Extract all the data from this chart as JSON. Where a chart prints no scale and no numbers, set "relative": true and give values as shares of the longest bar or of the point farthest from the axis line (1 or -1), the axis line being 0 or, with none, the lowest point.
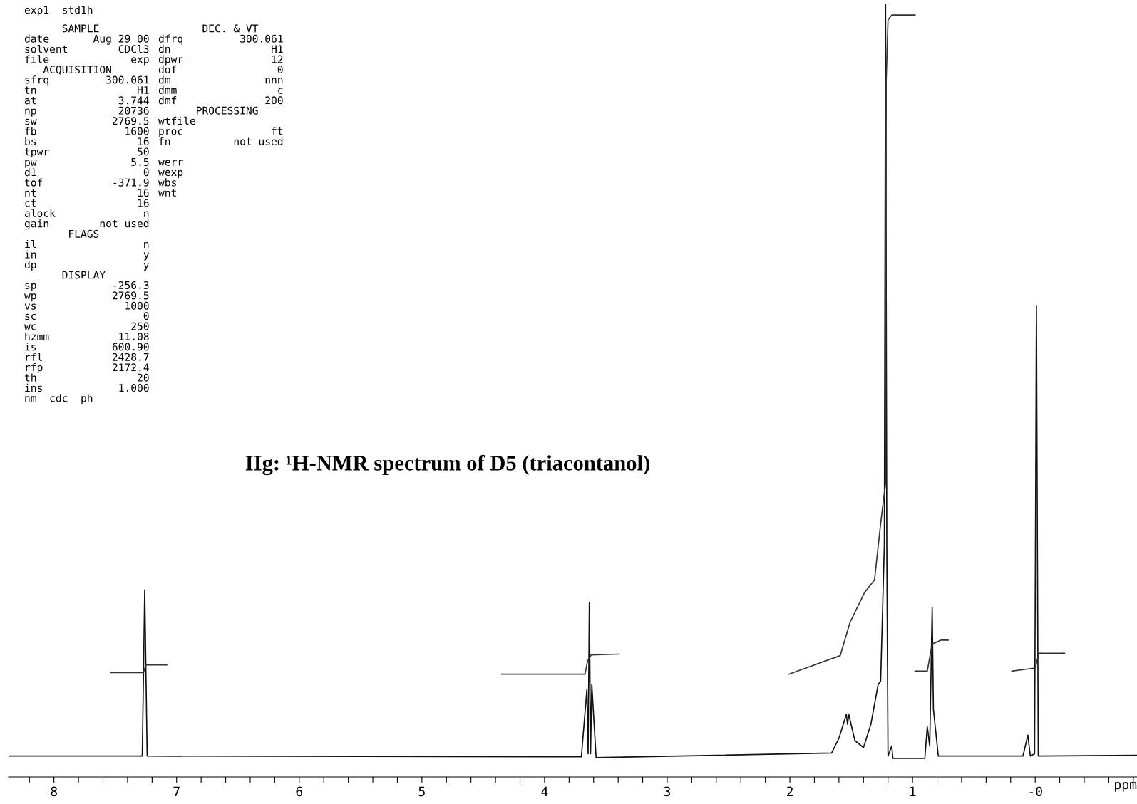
{
  "chart_data": {
    "type": "line",
    "title": "IIg: ¹H-NMR spectrum of D5 (triacontanol)",
    "xlabel": "ppm",
    "relative": true,
    "grid": false,
    "legend": false,
    "marker": "none",
    "line_style": "solid",
    "tick_labels": "x",
    "xlim": [
      8.37,
      -0.83
    ],
    "xticks": [
      {
        "value": 8.2,
        "label": null
      },
      {
        "value": 8,
        "label": "8"
      },
      {
        "value": 7.8,
        "label": null
      },
      {
        "value": 7.6,
        "label": null
      },
      {
        "value": 7.4,
        "label": null
      },
      {
        "value": 7.2,
        "label": null
      },
      {
        "value": 7,
        "label": "7"
      },
      {
        "value": 6.8,
        "label": null
      },
      {
        "value": 6.6,
        "label": null
      },
      {
        "value": 6.4,
        "label": null
      },
      {
        "value": 6.2,
        "label": null
      },
      {
        "value": 6,
        "label": "6"
      },
      {
        "value": 5.8,
        "label": null
      },
      {
        "value": 5.6,
        "label": null
      },
      {
        "value": 5.4,
        "label": null
      },
      {
        "value": 5.2,
        "label": null
      },
      {
        "value": 5,
        "label": "5"
      },
      {
        "value": 4.8,
        "label": null
      },
      {
        "value": 4.6,
        "label": null
      },
      {
        "value": 4.4,
        "label": null
      },
      {
        "value": 4.2,
        "label": null
      },
      {
        "value": 4,
        "label": "4"
      },
      {
        "value": 3.8,
        "label": null
      },
      {
        "value": 3.6,
        "label": null
      },
      {
        "value": 3.4,
        "label": null
      },
      {
        "value": 3.2,
        "label": null
      },
      {
        "value": 3,
        "label": "3"
      },
      {
        "value": 2.8,
        "label": null
      },
      {
        "value": 2.6,
        "label": null
      },
      {
        "value": 2.4,
        "label": null
      },
      {
        "value": 2.2,
        "label": null
      },
      {
        "value": 2,
        "label": "2"
      },
      {
        "value": 1.8,
        "label": null
      },
      {
        "value": 1.6,
        "label": null
      },
      {
        "value": 1.4,
        "label": null
      },
      {
        "value": 1.2,
        "label": null
      },
      {
        "value": 1,
        "label": "1"
      },
      {
        "value": 0.8,
        "label": null
      },
      {
        "value": 0.6,
        "label": null
      },
      {
        "value": 0.4,
        "label": null
      },
      {
        "value": 0.2,
        "label": null
      },
      {
        "value": 0,
        "label": "-0"
      },
      {
        "value": -0.2,
        "label": null
      },
      {
        "value": -0.4,
        "label": null
      },
      {
        "value": -0.6,
        "label": null
      },
      {
        "value": -0.8,
        "label": null
      }
    ],
    "series": [
      {
        "color": "#111111",
        "x": [
          8.37,
          7.28,
          7.26,
          7.24,
          3.7,
          3.655,
          3.645,
          3.635,
          3.625,
          3.615,
          3.58,
          1.66,
          1.6,
          1.54,
          1.53,
          1.52,
          1.47,
          1.4,
          1.34,
          1.28,
          1.26,
          1.23,
          1.22,
          1.21,
          1.2,
          1.17,
          1.16,
          1.05,
          0.9,
          0.88,
          0.86,
          0.84,
          0.83,
          0.79,
          0.1,
          0.06,
          0.04,
          0.005,
          -0.01,
          -0.025,
          -0.83
        ],
        "values": [
          0.027,
          0.027,
          0.242,
          0.027,
          0.026,
          0.113,
          0.03,
          0.226,
          0.03,
          0.12,
          0.025,
          0.031,
          0.05,
          0.081,
          0.068,
          0.081,
          0.047,
          0.038,
          0.068,
          0.12,
          0.124,
          0.3,
          1.0,
          0.3,
          0.027,
          0.04,
          0.024,
          0.024,
          0.024,
          0.065,
          0.04,
          0.219,
          0.088,
          0.027,
          0.027,
          0.054,
          0.027,
          0.03,
          0.61,
          0.027,
          0.028
        ]
      },
      {
        "color": "#333333",
        "x": [
          7.54,
          7.27,
          7.25,
          7.08,
          null,
          4.35,
          3.67,
          3.65,
          3.62,
          3.4,
          null,
          2.01,
          1.59,
          1.51,
          1.39,
          1.31,
          1.26,
          1.22,
          1.215,
          1.2,
          1.17,
          0.98,
          null,
          0.98,
          0.88,
          0.84,
          0.77,
          0.71,
          null,
          0.19,
          0.0,
          -0.03,
          -0.24
        ],
        "values": [
          0.135,
          0.135,
          0.145,
          0.145,
          null,
          0.133,
          0.133,
          0.15,
          0.158,
          0.159,
          null,
          0.133,
          0.157,
          0.2,
          0.239,
          0.255,
          0.328,
          0.38,
          0.9,
          0.98,
          0.986,
          0.986,
          null,
          0.137,
          0.137,
          0.172,
          0.177,
          0.177,
          null,
          0.137,
          0.141,
          0.16,
          0.16
        ]
      }
    ],
    "annotations": [
      "exp1  std1h",
      "      SAMPLE\ndate       Aug 29 00\nsolvent        CDCl3\nfile             exp\n   ACQUISITION\nsfrq         300.061\ntn                H1\nat             3.744\nnp             20736\nsw            2769.5\nfb              1600\nbs                16\ntpwr              50\npw               5.5\nd1                 0\ntof           -371.9\nnt                16\nct                16\nalock              n\ngain        not used\n       FLAGS\nil                 n\nin                 y\ndp                 y\n      DISPLAY\nsp            -256.3\nwp            2769.5\nvs              1000\nsc                 0\nwc               250\nhzmm           11.08\nis            600.90\nrfl           2428.7\nrfp           2172.4\nth                20\nins            1.000\nnm  cdc  ph",
      "       DEC. & VT\ndfrq         300.061\ndn                H1\ndpwr              12\ndof                0\ndm               nnn\ndmm                c\ndmf              200\n      PROCESSING\nwtfile\nproc              ft\nfn          not used\n \nwerr\nwexp\nwbs\nwnt"
    ]
  }
}
